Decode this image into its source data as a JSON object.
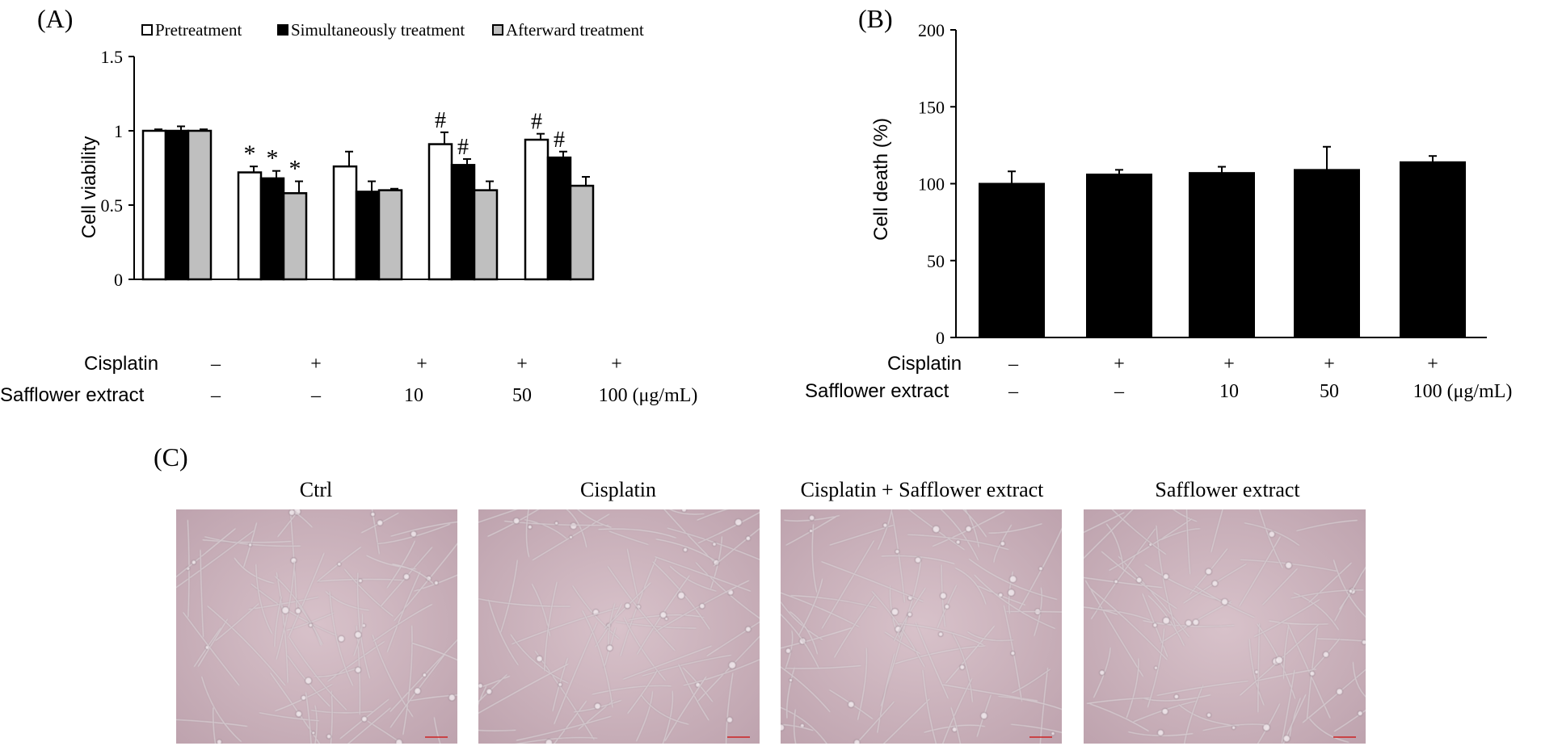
{
  "panel_labels": {
    "a": "(A)",
    "b": "(B)",
    "c": "(C)"
  },
  "colors": {
    "pretreatment": "#ffffff",
    "simultaneous": "#000000",
    "afterward": "#bfbfbf",
    "bar_b": "#000000",
    "photo_bg": "#cdb3bd",
    "photo_cell": "#f3ecef",
    "photo_dark": "#8e7683"
  },
  "chart_data": [
    {
      "type": "bar",
      "title": "",
      "xlabel": "",
      "ylabel": "Cell viability",
      "ylim": [
        0,
        1.5
      ],
      "yticks": [
        "0",
        "0.5",
        "1",
        "1.5"
      ],
      "ytick_values": [
        0,
        0.5,
        1,
        1.5
      ],
      "legend_position": "top",
      "categories": [
        "1",
        "2",
        "3",
        "4",
        "5"
      ],
      "row_labels": [
        "Cisplatin",
        "Safflower extract"
      ],
      "cisplatin_row": [
        "–",
        "+",
        "+",
        "+",
        "+"
      ],
      "safflower_row": [
        "–",
        "–",
        "10",
        "50",
        "100 (μg/mL)"
      ],
      "series": [
        {
          "name": "Pretreatment",
          "values": [
            1.0,
            0.72,
            0.76,
            0.91,
            0.94
          ],
          "errors": [
            0.01,
            0.04,
            0.1,
            0.08,
            0.04
          ],
          "marks": [
            "",
            "*",
            "",
            "#",
            "#"
          ]
        },
        {
          "name": "Simultaneously treatment",
          "values": [
            1.0,
            0.68,
            0.59,
            0.77,
            0.82
          ],
          "errors": [
            0.03,
            0.05,
            0.07,
            0.04,
            0.04
          ],
          "marks": [
            "",
            "*",
            "",
            "#",
            "#"
          ]
        },
        {
          "name": "Afterward treatment",
          "values": [
            1.0,
            0.58,
            0.6,
            0.6,
            0.63
          ],
          "errors": [
            0.01,
            0.08,
            0.01,
            0.06,
            0.06
          ],
          "marks": [
            "",
            "*",
            "",
            "",
            ""
          ]
        }
      ]
    },
    {
      "type": "bar",
      "title": "",
      "xlabel": "",
      "ylabel": "Cell death (%)",
      "ylim": [
        0,
        200
      ],
      "yticks": [
        "0",
        "50",
        "100",
        "150",
        "200"
      ],
      "ytick_values": [
        0,
        50,
        100,
        150,
        200
      ],
      "categories": [
        "1",
        "2",
        "3",
        "4",
        "5"
      ],
      "row_labels": [
        "Cisplatin",
        "Safflower extract"
      ],
      "cisplatin_row": [
        "–",
        "+",
        "+",
        "+",
        "+"
      ],
      "safflower_row": [
        "–",
        "–",
        "10",
        "50",
        "100 (μg/mL)"
      ],
      "values": [
        100,
        106,
        107,
        109,
        114
      ],
      "errors": [
        8,
        3,
        4,
        15,
        4
      ]
    }
  ],
  "panel_c": {
    "images": [
      {
        "label": "Ctrl"
      },
      {
        "label": "Cisplatin"
      },
      {
        "label": "Cisplatin + Safflower extract"
      },
      {
        "label": "Safflower extract"
      }
    ]
  }
}
